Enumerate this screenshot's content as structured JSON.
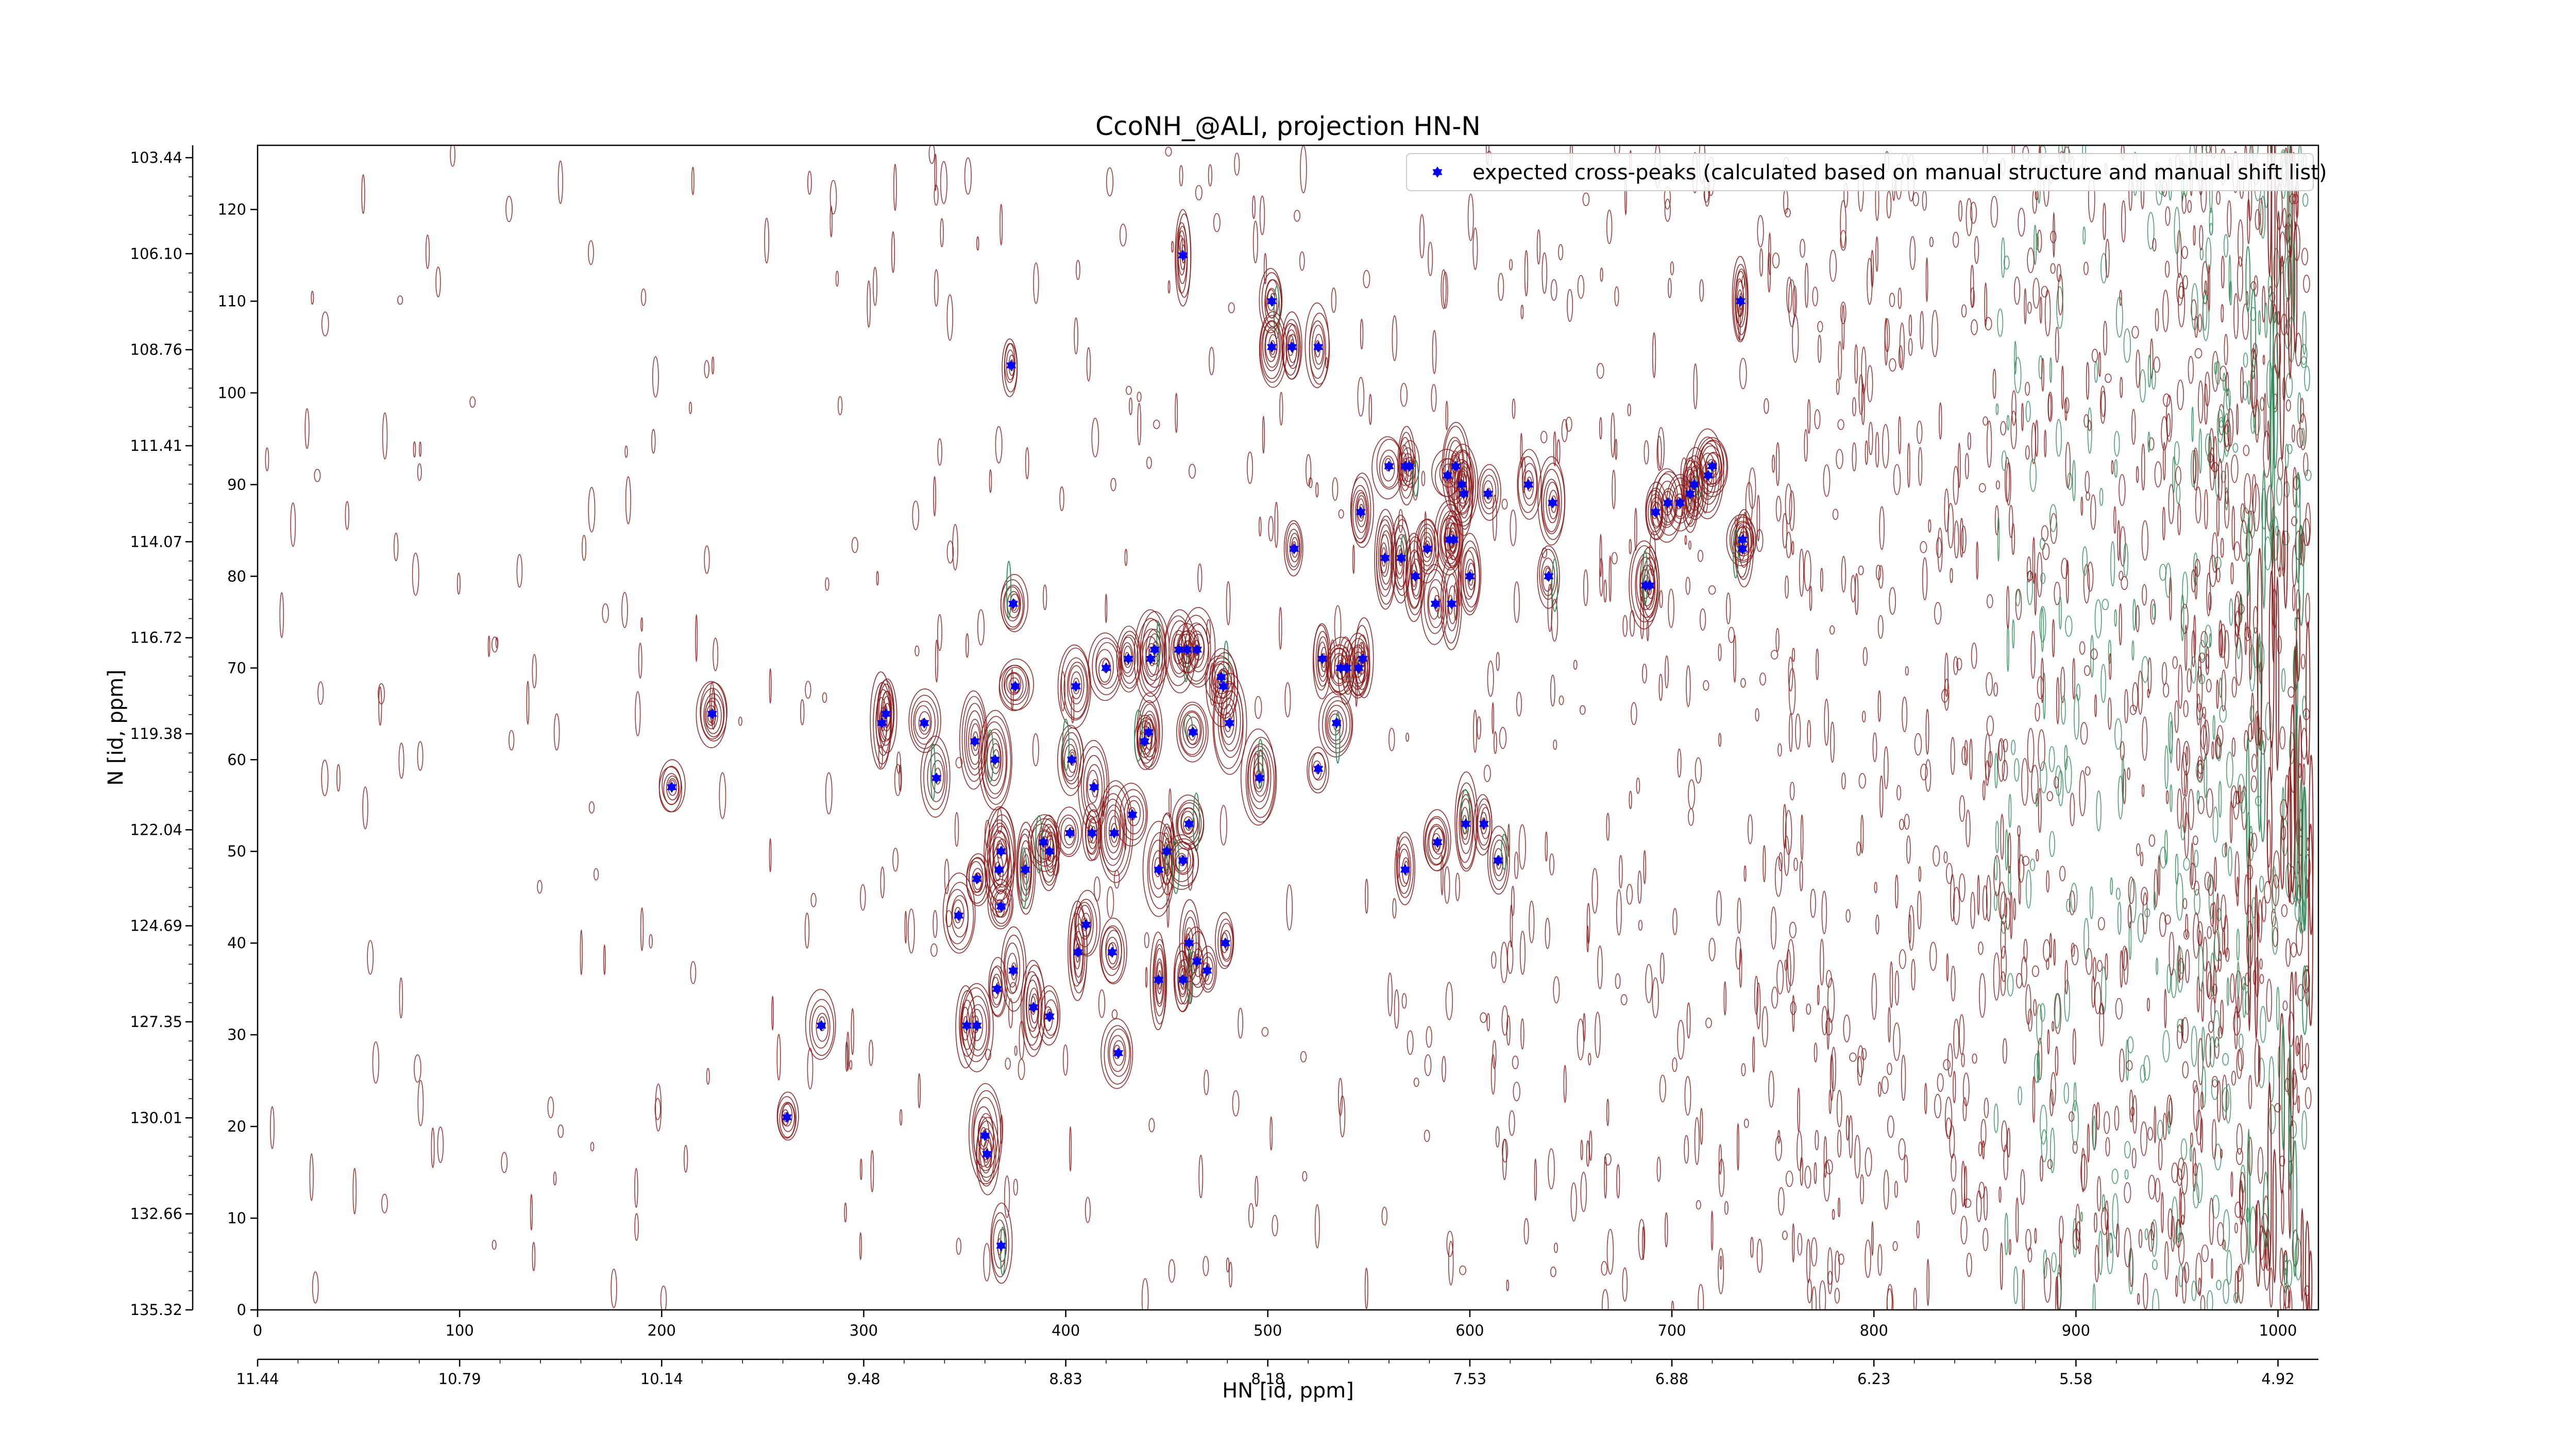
{
  "chart_data": {
    "type": "scatter",
    "title": "CcoNH_@ALI, projection HN-N",
    "xlabel": "HN [id, ppm]",
    "ylabel": "N [id, ppm]",
    "xlim": [
      0,
      1020
    ],
    "ylim": [
      0,
      127
    ],
    "x_ticks": [
      0,
      100,
      200,
      300,
      400,
      500,
      600,
      700,
      800,
      900,
      1000
    ],
    "y_ticks": [
      0,
      10,
      20,
      30,
      40,
      50,
      60,
      70,
      80,
      90,
      100,
      110,
      120
    ],
    "x_ppm_labels": [
      "11.44",
      "10.79",
      "10.14",
      "9.48",
      "8.83",
      "8.18",
      "7.53",
      "6.88",
      "6.23",
      "5.58",
      "4.92"
    ],
    "y_ppm_labels": [
      "103.44",
      "106.10",
      "108.76",
      "111.41",
      "114.07",
      "116.72",
      "119.38",
      "122.04",
      "124.69",
      "127.35",
      "130.01",
      "132.66",
      "135.32"
    ],
    "legend": {
      "placement": "top-right"
    },
    "colors": {
      "peak": "#0000ff",
      "contour_pos": "#8b1a1a",
      "contour_neg": "#2e8b57"
    },
    "series": [
      {
        "name": "expected cross-peaks (calculated based on manual structure and manual shift list)",
        "x": [
          458,
          373,
          502,
          502,
          512,
          525,
          734,
          560,
          568,
          570,
          589,
          593,
          596,
          597,
          609,
          629,
          641,
          692,
          698,
          704,
          709,
          711,
          718,
          720,
          735,
          735,
          513,
          546,
          558,
          579,
          590,
          592,
          687,
          689,
          566,
          573,
          583,
          591,
          600,
          639,
          374,
          420,
          375,
          405,
          431,
          442,
          444,
          456,
          460,
          465,
          477,
          478,
          527,
          536,
          539,
          545,
          547,
          534,
          330,
          365,
          225,
          311,
          355,
          205,
          336,
          403,
          414,
          463,
          481,
          441,
          309,
          439,
          525,
          496,
          461,
          433,
          413,
          424,
          402,
          392,
          450,
          389,
          446,
          458,
          380,
          368,
          367,
          584,
          607,
          598,
          614,
          568,
          356,
          347,
          368,
          374,
          410,
          406,
          423,
          446,
          465,
          470,
          479,
          458,
          461,
          366,
          392,
          356,
          351,
          384,
          279,
          426,
          262,
          360,
          361,
          368
        ],
        "y": [
          115,
          103,
          110,
          105,
          105,
          105,
          110,
          92,
          92,
          92,
          91,
          92,
          90,
          89,
          89,
          90,
          88,
          87,
          88,
          88,
          89,
          90,
          91,
          92,
          84,
          83,
          83,
          87,
          82,
          83,
          84,
          84,
          79,
          79,
          82,
          80,
          77,
          77,
          80,
          80,
          77,
          70,
          68,
          68,
          71,
          71,
          72,
          72,
          72,
          72,
          69,
          68,
          71,
          70,
          70,
          70,
          71,
          64,
          64,
          60,
          65,
          65,
          62,
          57,
          58,
          60,
          57,
          63,
          64,
          63,
          64,
          62,
          59,
          58,
          53,
          54,
          52,
          52,
          52,
          50,
          50,
          51,
          48,
          49,
          48,
          50,
          48,
          51,
          53,
          53,
          49,
          48,
          47,
          43,
          44,
          37,
          42,
          39,
          39,
          36,
          38,
          37,
          40,
          36,
          40,
          35,
          32,
          31,
          31,
          33,
          31,
          28,
          21,
          19,
          17,
          7
        ]
      }
    ]
  }
}
